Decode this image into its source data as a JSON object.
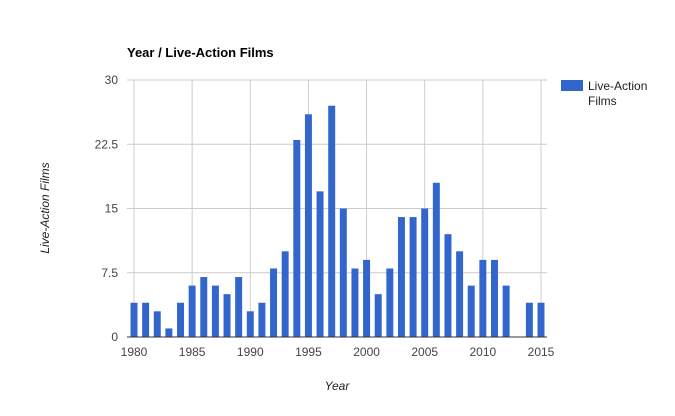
{
  "chart_data": {
    "type": "bar",
    "title": "Year / Live-Action Films",
    "xlabel": "Year",
    "ylabel": "Live-Action Films",
    "x": [
      1980,
      1981,
      1982,
      1983,
      1984,
      1985,
      1986,
      1987,
      1988,
      1989,
      1990,
      1991,
      1992,
      1993,
      1994,
      1995,
      1996,
      1997,
      1998,
      1999,
      2000,
      2001,
      2002,
      2003,
      2004,
      2005,
      2006,
      2007,
      2008,
      2009,
      2010,
      2011,
      2012,
      2013,
      2014,
      2015
    ],
    "series": [
      {
        "name": "Live-Action Films",
        "color": "#3366cc",
        "values": [
          4,
          4,
          3,
          1,
          4,
          6,
          7,
          6,
          5,
          7,
          3,
          4,
          8,
          10,
          23,
          26,
          17,
          27,
          15,
          8,
          9,
          5,
          8,
          14,
          14,
          15,
          18,
          12,
          10,
          6,
          9,
          9,
          6,
          0,
          4,
          4
        ]
      }
    ],
    "xticks": [
      "1980",
      "1985",
      "1990",
      "1995",
      "2000",
      "2005",
      "2010",
      "2015"
    ],
    "yticks": [
      "0",
      "7.5",
      "15",
      "22.5",
      "30"
    ],
    "ylim": [
      0,
      30
    ],
    "xlim": [
      1980,
      2015
    ],
    "grid": true,
    "legend": "right"
  }
}
